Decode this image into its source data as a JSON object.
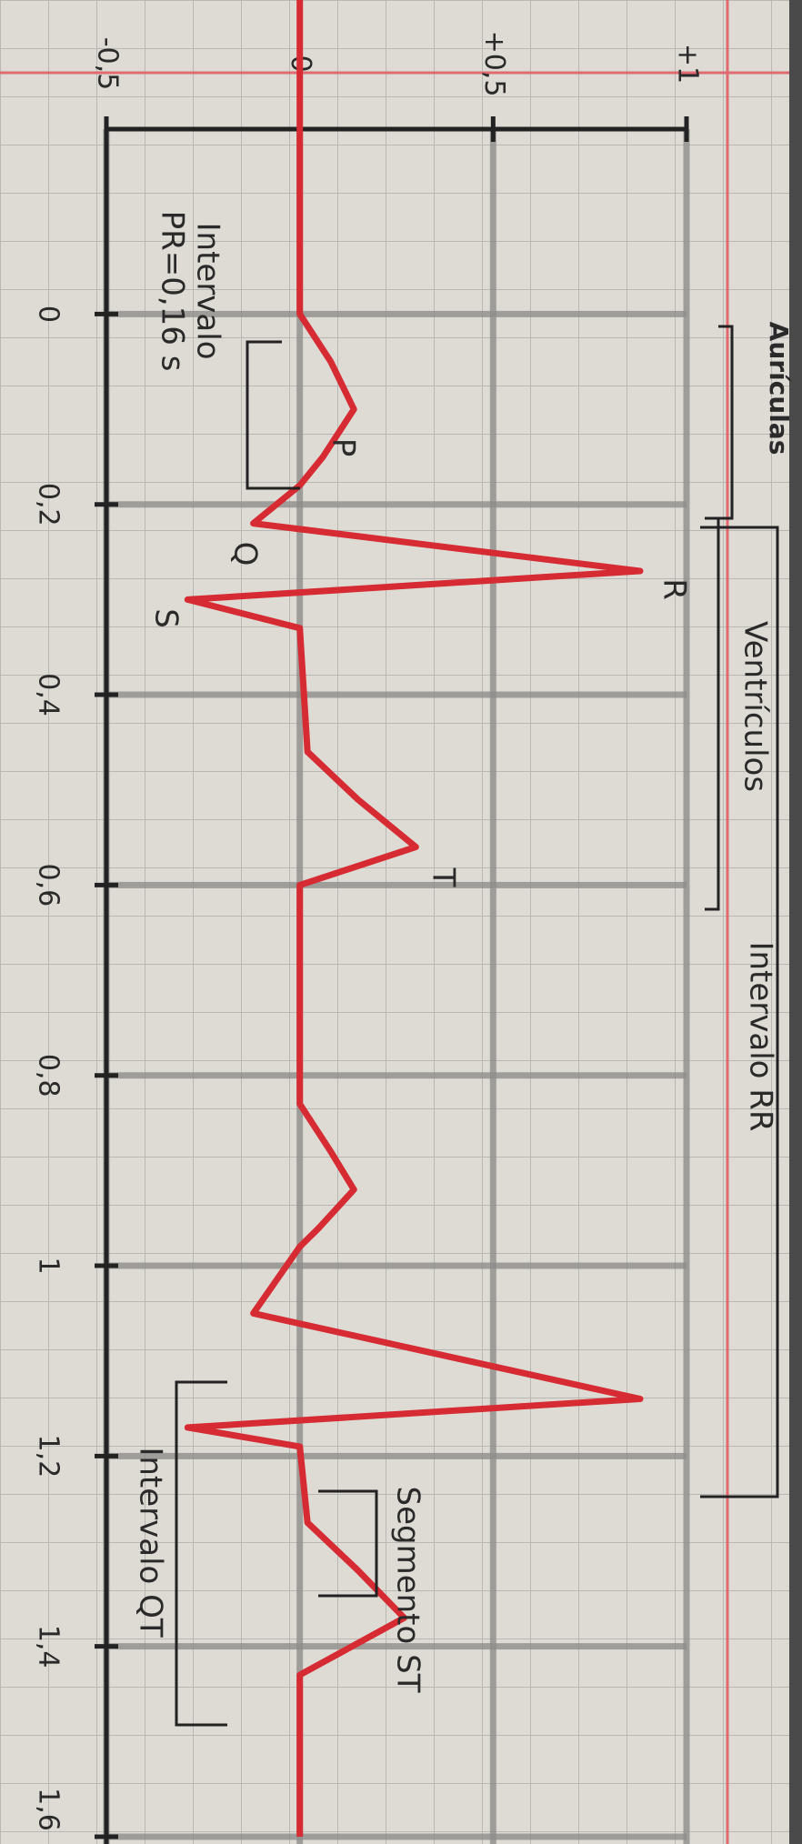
{
  "chart_data": {
    "type": "line",
    "x": [
      -0.33,
      0,
      0.05,
      0.1,
      0.15,
      0.18,
      0.22,
      0.27,
      0.3,
      0.33,
      0.46,
      0.51,
      0.56,
      0.6,
      0.83,
      0.88,
      0.92,
      0.96,
      0.98,
      1.05,
      1.14,
      1.17,
      1.19,
      1.27,
      1.32,
      1.37,
      1.43,
      1.6
    ],
    "series": [
      {
        "color": "#d62b32",
        "values": [
          0,
          0,
          0.08,
          0.14,
          0.06,
          0,
          -0.12,
          0.88,
          -0.29,
          0,
          0.02,
          0.15,
          0.3,
          0,
          0,
          0.08,
          0.14,
          0.05,
          0,
          -0.12,
          0.88,
          -0.29,
          0,
          0.02,
          0.15,
          0.27,
          0,
          0
        ]
      }
    ],
    "xlim": [
      -0.33,
      1.6
    ],
    "xticks": [
      0,
      {
        "value": 0.2,
        "label": "0,2"
      },
      {
        "value": 0.4,
        "label": "0,4"
      },
      {
        "value": 0.6,
        "label": "0,6"
      },
      {
        "value": 0.8,
        "label": "0,8"
      },
      1,
      {
        "value": 1.2,
        "label": "1,2"
      },
      {
        "value": 1.4,
        "label": "1,4"
      },
      {
        "value": 1.6,
        "label": "1,6"
      }
    ],
    "ylim": [
      -0.5,
      1
    ],
    "yticks": [
      {
        "value": -0.5,
        "label": "-0,5"
      },
      0,
      {
        "value": 0.5,
        "label": "+0,5"
      },
      {
        "value": 1,
        "label": "+1"
      }
    ],
    "grid": true,
    "wave_labels": [
      "P",
      "Q",
      "R",
      "S",
      "T"
    ],
    "annotations": [
      "Aurículas",
      "Ventrículos",
      "Intervalo RR",
      "Intervalo QT",
      "Segmento ST",
      "Intervalo",
      "PR=0,16 s"
    ]
  }
}
